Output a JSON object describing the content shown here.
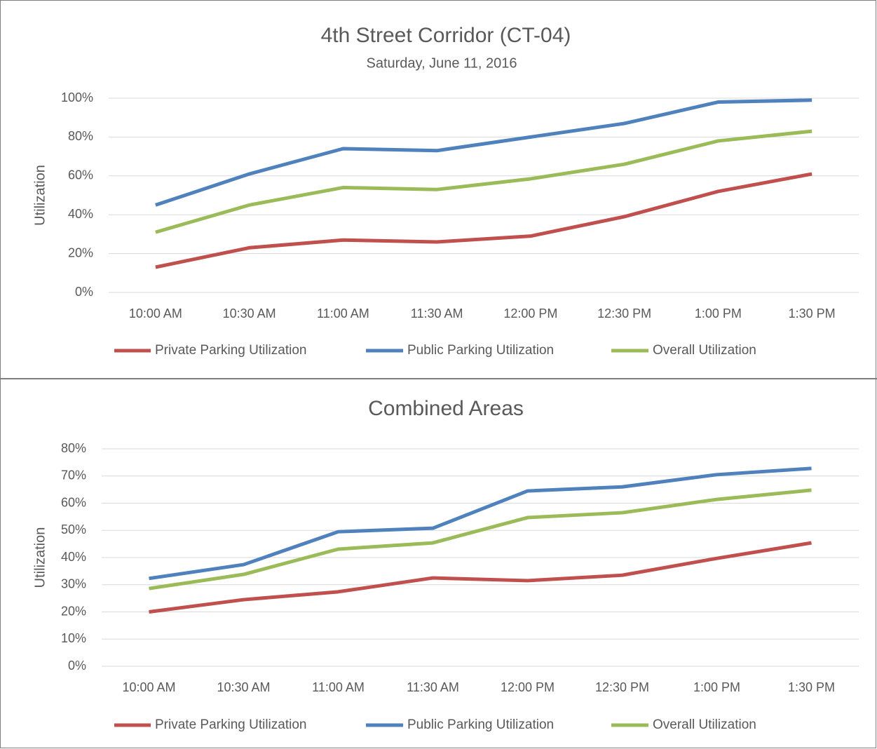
{
  "chart_data": [
    {
      "type": "line",
      "title": "4th Street Corridor (CT-04)",
      "subtitle": "Saturday, June 11, 2016",
      "ylabel": "Utilization",
      "categories": [
        "10:00 AM",
        "10:30 AM",
        "11:00 AM",
        "11:30 AM",
        "12:00 PM",
        "12:30 PM",
        "1:00 PM",
        "1:30 PM"
      ],
      "series": [
        {
          "name": "Private Parking Utilization",
          "color": "#c0504d",
          "values": [
            13,
            23,
            27,
            26,
            29,
            39,
            52,
            61
          ]
        },
        {
          "name": "Public Parking Utilization",
          "color": "#4f81bd",
          "values": [
            45,
            61,
            74,
            73,
            80,
            87,
            98,
            99
          ]
        },
        {
          "name": "Overall Utilization",
          "color": "#9bbb59",
          "values": [
            31,
            45,
            54,
            53,
            58.5,
            66,
            78,
            83
          ]
        }
      ],
      "ylim": [
        0,
        100
      ],
      "yticks": [
        {
          "value": 0,
          "label": "0%"
        },
        {
          "value": 20,
          "label": "20%"
        },
        {
          "value": 40,
          "label": "40%"
        },
        {
          "value": 60,
          "label": "60%"
        },
        {
          "value": 80,
          "label": "80%"
        },
        {
          "value": 100,
          "label": "100%"
        }
      ],
      "grid": true,
      "legend": "bottom"
    },
    {
      "type": "line",
      "title": "Combined Areas",
      "ylabel": "Utilization",
      "categories": [
        "10:00 AM",
        "10:30 AM",
        "11:00 AM",
        "11:30 AM",
        "12:00 PM",
        "12:30 PM",
        "1:00 PM",
        "1:30 PM"
      ],
      "series": [
        {
          "name": "Private Parking Utilization",
          "color": "#c0504d",
          "values": [
            20,
            24.5,
            27.4,
            32.5,
            31.5,
            33.5,
            39.7,
            45.4
          ]
        },
        {
          "name": "Public Parking Utilization",
          "color": "#4f81bd",
          "values": [
            32.3,
            37.4,
            49.5,
            50.8,
            64.5,
            66,
            70.5,
            72.8
          ]
        },
        {
          "name": "Overall Utilization",
          "color": "#9bbb59",
          "values": [
            28.6,
            33.8,
            43.1,
            45.4,
            54.7,
            56.5,
            61.4,
            64.8
          ]
        }
      ],
      "ylim": [
        0,
        80
      ],
      "yticks": [
        {
          "value": 0,
          "label": "0%"
        },
        {
          "value": 10,
          "label": "10%"
        },
        {
          "value": 20,
          "label": "20%"
        },
        {
          "value": 30,
          "label": "30%"
        },
        {
          "value": 40,
          "label": "40%"
        },
        {
          "value": 50,
          "label": "50%"
        },
        {
          "value": 60,
          "label": "60%"
        },
        {
          "value": 70,
          "label": "70%"
        },
        {
          "value": 80,
          "label": "80%"
        }
      ],
      "grid": true,
      "legend": "bottom"
    }
  ]
}
